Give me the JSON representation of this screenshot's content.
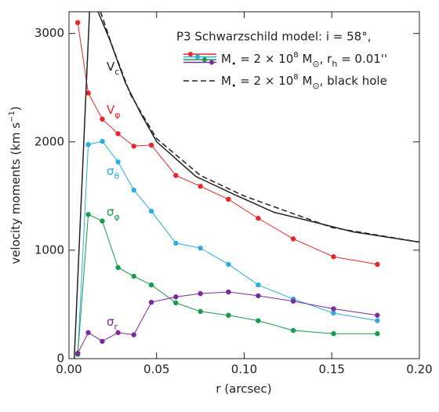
{
  "chart_data": {
    "type": "line",
    "title": "P3 Schwarzschild model: i = 58°,",
    "x_label": "r (arcsec)",
    "y_label": [
      "velocity moments (km s",
      {
        "sup": "−1"
      },
      ")"
    ],
    "legend": [
      [
        "M",
        {
          "sub": "•"
        },
        " = 2 × 10",
        {
          "sup": "8"
        },
        " M",
        {
          "sub": "⊙"
        },
        ",  r",
        {
          "sub": "h"
        },
        " = 0.01''"
      ],
      [
        "M",
        {
          "sub": "•"
        },
        " = 2 × 10",
        {
          "sup": "8"
        },
        " M",
        {
          "sub": "⊙"
        },
        ", black hole"
      ]
    ],
    "xlim": [
      0,
      0.2
    ],
    "ylim": [
      0,
      3200
    ],
    "xticks": [
      {
        "value": 0,
        "label": "0.00"
      },
      {
        "value": 0.05,
        "label": "0.05"
      },
      {
        "value": 0.1,
        "label": "0.10"
      },
      {
        "value": 0.15,
        "label": "0.15"
      },
      {
        "value": 0.2,
        "label": "0.20"
      }
    ],
    "yticks": [
      0,
      1000,
      2000,
      3000
    ],
    "series": [
      {
        "label": [
          "V",
          {
            "sub": "φ"
          }
        ],
        "color": "#e8262a",
        "marker": true,
        "dashed": false,
        "x": [
          0.005,
          0.011,
          0.019,
          0.028,
          0.037,
          0.047,
          0.061,
          0.075,
          0.091,
          0.108,
          0.128,
          0.151,
          0.176
        ],
        "values": [
          3100,
          2450,
          2210,
          2075,
          1960,
          1970,
          1690,
          1590,
          1470,
          1295,
          1105,
          940,
          870
        ]
      },
      {
        "label": [
          "σ",
          {
            "sub": "θ"
          }
        ],
        "color": "#2aaee0",
        "marker": true,
        "dashed": false,
        "x": [
          0.005,
          0.011,
          0.019,
          0.028,
          0.037,
          0.047,
          0.061,
          0.075,
          0.091,
          0.108,
          0.128,
          0.151,
          0.176
        ],
        "values": [
          40,
          1975,
          2005,
          1815,
          1555,
          1360,
          1065,
          1020,
          870,
          680,
          550,
          420,
          350
        ]
      },
      {
        "label": [
          "σ",
          {
            "sub": "φ"
          }
        ],
        "color": "#1a9a4a",
        "marker": true,
        "dashed": false,
        "x": [
          0.005,
          0.011,
          0.019,
          0.028,
          0.037,
          0.047,
          0.061,
          0.075,
          0.091,
          0.108,
          0.128,
          0.151,
          0.176
        ],
        "values": [
          40,
          1330,
          1270,
          840,
          760,
          680,
          515,
          435,
          400,
          350,
          260,
          230,
          230
        ]
      },
      {
        "label": [
          "σ",
          {
            "sub": "r"
          }
        ],
        "color": "#7b2a9a",
        "marker": true,
        "dashed": false,
        "x": [
          0.005,
          0.011,
          0.019,
          0.028,
          0.037,
          0.047,
          0.061,
          0.075,
          0.091,
          0.108,
          0.128,
          0.151,
          0.176
        ],
        "values": [
          50,
          240,
          160,
          240,
          220,
          520,
          570,
          600,
          615,
          580,
          530,
          460,
          400
        ]
      },
      {
        "label": [
          "V",
          {
            "sub": "c"
          }
        ],
        "color": "#222222",
        "marker": false,
        "dashed": false,
        "x": [
          0.003,
          0.012,
          0.0166,
          0.0233,
          0.0322,
          0.0412,
          0.0501,
          0.0725,
          0.0949,
          0.117,
          0.14,
          0.162,
          0.2
        ],
        "values": [
          0,
          3300,
          3200,
          2940,
          2545,
          2255,
          2000,
          1680,
          1510,
          1350,
          1260,
          1170,
          1075
        ]
      },
      {
        "color": "#222222",
        "marker": false,
        "dashed": true,
        "x": [
          0.018,
          0.025,
          0.035,
          0.05,
          0.075,
          0.1,
          0.15,
          0.2
        ],
        "values": [
          3200,
          2870,
          2440,
          2030,
          1690,
          1500,
          1210,
          1075
        ]
      }
    ]
  }
}
